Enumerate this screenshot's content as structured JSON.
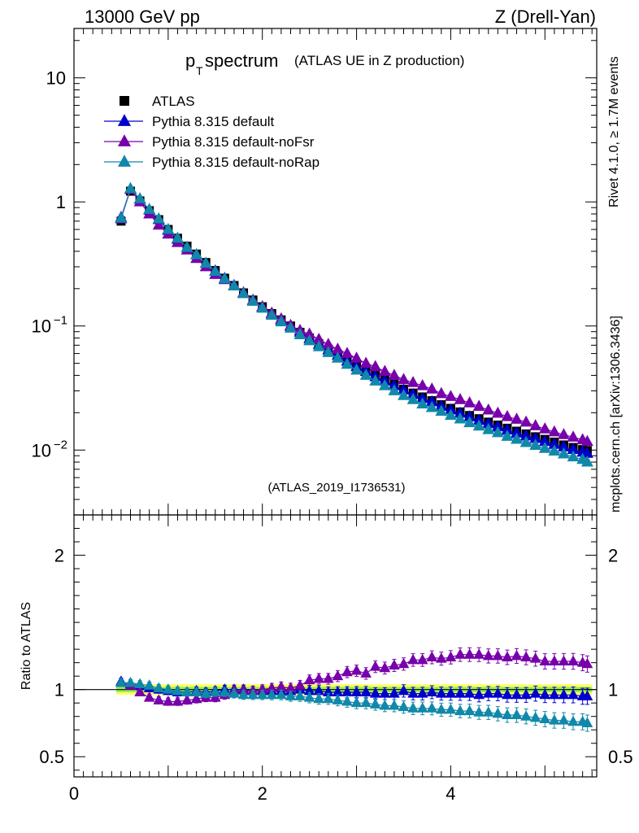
{
  "header": {
    "left": "13000 GeV pp",
    "right": "Z (Drell-Yan)"
  },
  "side": {
    "rivet": "Rivet 4.1.0, ≥ 1.7M events",
    "mcplots": "mcplots.cern.ch [arXiv:1306.3436]"
  },
  "colors": {
    "atlas": "#000000",
    "default": "#0000cc",
    "noFsr": "#7700aa",
    "noRap": "#1188aa",
    "band_outer": "#ffff66",
    "band_inner": "#99ee55"
  },
  "chart_data": [
    {
      "type": "scatter",
      "title_main": "p",
      "title_sub": "T",
      "title_rest": " spectrum",
      "title_extra": "(ATLAS UE in Z production)",
      "watermark": "(ATLAS_2019_I1736531)",
      "yscale": "log",
      "ylim": [
        0.003,
        25
      ],
      "xlim": [
        0,
        5.55
      ],
      "y_ticks": [
        {
          "v": 10,
          "label": "10"
        },
        {
          "v": 1,
          "label": "1"
        },
        {
          "v": 0.1,
          "label": "10",
          "exp": "−1"
        },
        {
          "v": 0.01,
          "label": "10",
          "exp": "−2"
        }
      ],
      "legend": [
        {
          "label": "ATLAS",
          "marker": "square",
          "key": "atlas"
        },
        {
          "label": "Pythia 8.315 default",
          "marker": "triangle",
          "key": "default"
        },
        {
          "label": "Pythia 8.315 default-noFsr",
          "marker": "triangle",
          "key": "noFsr"
        },
        {
          "label": "Pythia 8.315 default-noRap",
          "marker": "triangle",
          "key": "noRap"
        }
      ],
      "x": [
        0.5,
        0.6,
        0.7,
        0.8,
        0.9,
        1.0,
        1.1,
        1.2,
        1.3,
        1.4,
        1.5,
        1.6,
        1.7,
        1.8,
        1.9,
        2.0,
        2.1,
        2.2,
        2.3,
        2.4,
        2.5,
        2.6,
        2.7,
        2.8,
        2.9,
        3.0,
        3.1,
        3.2,
        3.3,
        3.4,
        3.5,
        3.6,
        3.7,
        3.8,
        3.9,
        4.0,
        4.1,
        4.2,
        4.3,
        4.4,
        4.5,
        4.6,
        4.7,
        4.8,
        4.9,
        5.0,
        5.1,
        5.2,
        5.3,
        5.4,
        5.45
      ],
      "series": [
        {
          "name": "ATLAS",
          "key": "atlas",
          "values": [
            0.7,
            1.22,
            1.02,
            0.85,
            0.72,
            0.6,
            0.51,
            0.44,
            0.38,
            0.325,
            0.28,
            0.243,
            0.212,
            0.185,
            0.162,
            0.143,
            0.126,
            0.112,
            0.1,
            0.089,
            0.08,
            0.072,
            0.065,
            0.059,
            0.053,
            0.048,
            0.044,
            0.04,
            0.037,
            0.034,
            0.031,
            0.0288,
            0.0268,
            0.025,
            0.0232,
            0.0217,
            0.0203,
            0.019,
            0.0179,
            0.0168,
            0.0159,
            0.015,
            0.0142,
            0.0135,
            0.0128,
            0.0122,
            0.0116,
            0.011,
            0.0105,
            0.0101,
            0.0099
          ]
        },
        {
          "name": "Pythia 8.315 default",
          "key": "default",
          "values": [
            0.75,
            1.27,
            1.05,
            0.86,
            0.72,
            0.59,
            0.5,
            0.43,
            0.375,
            0.32,
            0.278,
            0.242,
            0.212,
            0.185,
            0.161,
            0.142,
            0.125,
            0.111,
            0.099,
            0.089,
            0.079,
            0.071,
            0.064,
            0.058,
            0.052,
            0.047,
            0.043,
            0.039,
            0.036,
            0.033,
            0.0305,
            0.028,
            0.026,
            0.0245,
            0.0225,
            0.021,
            0.0198,
            0.0185,
            0.0173,
            0.0163,
            0.0154,
            0.0145,
            0.0137,
            0.013,
            0.0124,
            0.0117,
            0.0111,
            0.0106,
            0.0101,
            0.0096,
            0.0094
          ]
        },
        {
          "name": "Pythia 8.315 default-noFsr",
          "key": "noFsr",
          "values": [
            0.73,
            1.26,
            1.0,
            0.8,
            0.65,
            0.55,
            0.47,
            0.41,
            0.35,
            0.3,
            0.26,
            0.236,
            0.21,
            0.184,
            0.161,
            0.143,
            0.127,
            0.114,
            0.101,
            0.092,
            0.086,
            0.078,
            0.071,
            0.065,
            0.06,
            0.055,
            0.05,
            0.047,
            0.043,
            0.04,
            0.037,
            0.035,
            0.033,
            0.031,
            0.0285,
            0.027,
            0.0255,
            0.024,
            0.0225,
            0.021,
            0.0198,
            0.0186,
            0.0177,
            0.0168,
            0.0157,
            0.0148,
            0.014,
            0.0133,
            0.0127,
            0.0121,
            0.0117
          ]
        },
        {
          "name": "Pythia 8.315 default-noRap",
          "key": "noRap",
          "values": [
            0.74,
            1.28,
            1.06,
            0.87,
            0.73,
            0.6,
            0.51,
            0.43,
            0.375,
            0.32,
            0.275,
            0.24,
            0.21,
            0.182,
            0.158,
            0.139,
            0.122,
            0.108,
            0.096,
            0.085,
            0.076,
            0.068,
            0.061,
            0.055,
            0.049,
            0.044,
            0.04,
            0.036,
            0.033,
            0.03,
            0.0275,
            0.0255,
            0.0235,
            0.022,
            0.0205,
            0.019,
            0.0178,
            0.0166,
            0.0156,
            0.0146,
            0.0138,
            0.0129,
            0.0122,
            0.0115,
            0.0109,
            0.0103,
            0.0098,
            0.0093,
            0.0088,
            0.0084,
            0.008
          ]
        }
      ]
    },
    {
      "type": "scatter",
      "ylabel": "Ratio to ATLAS",
      "ylim": [
        0.35,
        2.3
      ],
      "xlim": [
        0,
        5.55
      ],
      "y_ticks": [
        {
          "v": 2,
          "label": "2"
        },
        {
          "v": 1,
          "label": "1"
        },
        {
          "v": 0.5,
          "label": "0.5"
        }
      ],
      "x_ticks": [
        {
          "v": 0,
          "label": "0"
        },
        {
          "v": 2,
          "label": "2"
        },
        {
          "v": 4,
          "label": "4"
        }
      ],
      "band_outer": [
        0.96,
        1.04
      ],
      "band_inner": [
        0.98,
        1.02
      ],
      "x": [
        0.5,
        0.6,
        0.7,
        0.8,
        0.9,
        1.0,
        1.1,
        1.2,
        1.3,
        1.4,
        1.5,
        1.6,
        1.7,
        1.8,
        1.9,
        2.0,
        2.1,
        2.2,
        2.3,
        2.4,
        2.5,
        2.6,
        2.7,
        2.8,
        2.9,
        3.0,
        3.1,
        3.2,
        3.3,
        3.4,
        3.5,
        3.6,
        3.7,
        3.8,
        3.9,
        4.0,
        4.1,
        4.2,
        4.3,
        4.4,
        4.5,
        4.6,
        4.7,
        4.8,
        4.9,
        5.0,
        5.1,
        5.2,
        5.3,
        5.4,
        5.45
      ],
      "series": [
        {
          "name": "Pythia 8.315 default",
          "key": "default",
          "values": [
            1.06,
            1.04,
            1.03,
            1.01,
            1.0,
            0.99,
            0.98,
            0.98,
            0.99,
            0.98,
            0.99,
            1.0,
            1.0,
            1.0,
            0.99,
            0.99,
            0.99,
            0.99,
            0.99,
            1.0,
            0.99,
            0.99,
            0.98,
            0.98,
            0.98,
            0.98,
            0.98,
            0.97,
            0.97,
            0.97,
            0.99,
            0.97,
            0.97,
            0.98,
            0.97,
            0.97,
            0.97,
            0.97,
            0.96,
            0.97,
            0.97,
            0.96,
            0.96,
            0.96,
            0.97,
            0.96,
            0.96,
            0.96,
            0.96,
            0.95,
            0.95
          ]
        },
        {
          "name": "Pythia 8.315 default-noFsr",
          "key": "noFsr",
          "values": [
            1.05,
            1.03,
            0.98,
            0.94,
            0.92,
            0.91,
            0.91,
            0.92,
            0.93,
            0.94,
            0.94,
            0.96,
            0.99,
            0.99,
            0.99,
            1.0,
            1.01,
            1.02,
            1.01,
            1.03,
            1.07,
            1.08,
            1.08,
            1.1,
            1.13,
            1.14,
            1.12,
            1.17,
            1.16,
            1.18,
            1.19,
            1.22,
            1.22,
            1.24,
            1.23,
            1.24,
            1.26,
            1.26,
            1.26,
            1.25,
            1.25,
            1.24,
            1.25,
            1.24,
            1.23,
            1.21,
            1.21,
            1.21,
            1.21,
            1.2,
            1.19
          ]
        },
        {
          "name": "Pythia 8.315 default-noRap",
          "key": "noRap",
          "values": [
            1.05,
            1.05,
            1.04,
            1.03,
            1.01,
            1.0,
            0.99,
            0.98,
            0.98,
            0.97,
            0.98,
            0.98,
            0.97,
            0.96,
            0.96,
            0.96,
            0.96,
            0.96,
            0.95,
            0.95,
            0.94,
            0.93,
            0.93,
            0.92,
            0.91,
            0.9,
            0.9,
            0.89,
            0.88,
            0.88,
            0.87,
            0.86,
            0.86,
            0.86,
            0.85,
            0.85,
            0.84,
            0.84,
            0.83,
            0.83,
            0.82,
            0.81,
            0.81,
            0.8,
            0.79,
            0.78,
            0.77,
            0.77,
            0.76,
            0.76,
            0.75
          ]
        }
      ]
    }
  ]
}
